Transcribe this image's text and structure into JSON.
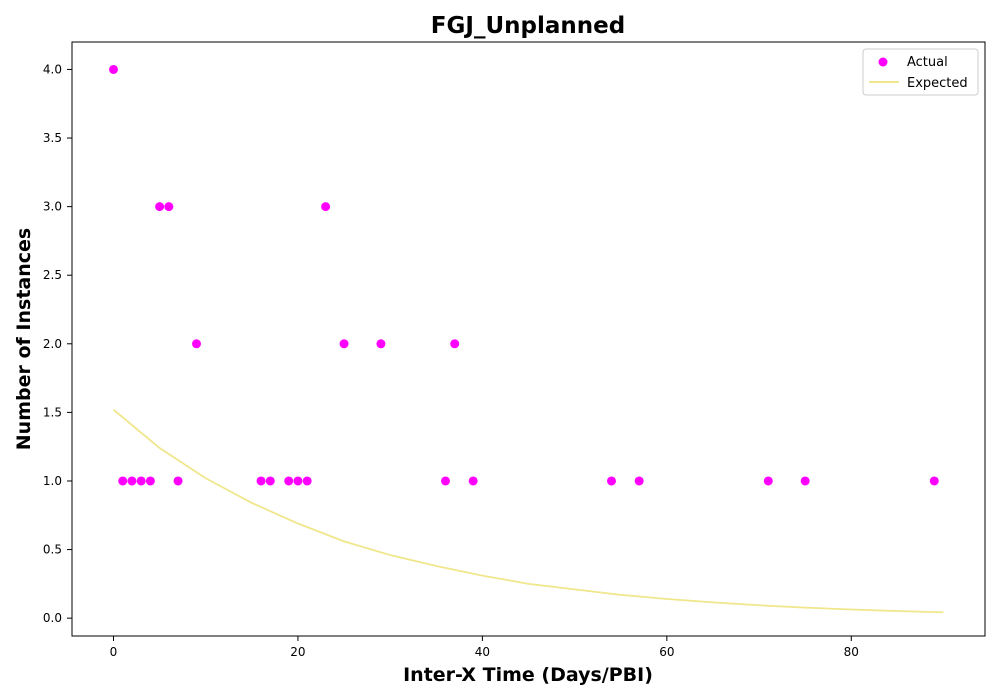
{
  "chart_data": {
    "type": "scatter",
    "title": "FGJ_Unplanned",
    "xlabel": "Inter-X Time (Days/PBI)",
    "ylabel": "Number of Instances",
    "xlim": [
      -4.5,
      94.5
    ],
    "ylim": [
      -0.13,
      4.2
    ],
    "xticks": [
      0,
      20,
      40,
      60,
      80
    ],
    "xtick_labels": [
      "0",
      "20",
      "40",
      "60",
      "80"
    ],
    "yticks": [
      0.0,
      0.5,
      1.0,
      1.5,
      2.0,
      2.5,
      3.0,
      3.5,
      4.0
    ],
    "ytick_labels": [
      "0.0",
      "0.5",
      "1.0",
      "1.5",
      "2.0",
      "2.5",
      "3.0",
      "3.5",
      "4.0"
    ],
    "grid": false,
    "legend_position": "top-right",
    "series": [
      {
        "name": "Actual",
        "kind": "scatter",
        "color": "#ff00ff",
        "x": [
          0,
          1,
          2,
          3,
          4,
          5,
          6,
          7,
          9,
          16,
          17,
          19,
          20,
          21,
          23,
          25,
          29,
          36,
          37,
          39,
          54,
          57,
          71,
          75,
          89
        ],
        "y": [
          4,
          1,
          1,
          1,
          1,
          3,
          3,
          1,
          2,
          1,
          1,
          1,
          1,
          1,
          3,
          2,
          2,
          1,
          2,
          1,
          1,
          1,
          1,
          1,
          1
        ]
      },
      {
        "name": "Expected",
        "kind": "line",
        "color": "#f0e68c",
        "x": [
          0,
          5,
          10,
          15,
          20,
          25,
          30,
          35,
          40,
          45,
          50,
          55,
          60,
          65,
          70,
          75,
          80,
          85,
          90
        ],
        "y": [
          1.52,
          1.24,
          1.02,
          0.84,
          0.69,
          0.56,
          0.46,
          0.38,
          0.31,
          0.25,
          0.21,
          0.17,
          0.14,
          0.115,
          0.094,
          0.077,
          0.063,
          0.052,
          0.042
        ]
      }
    ]
  }
}
